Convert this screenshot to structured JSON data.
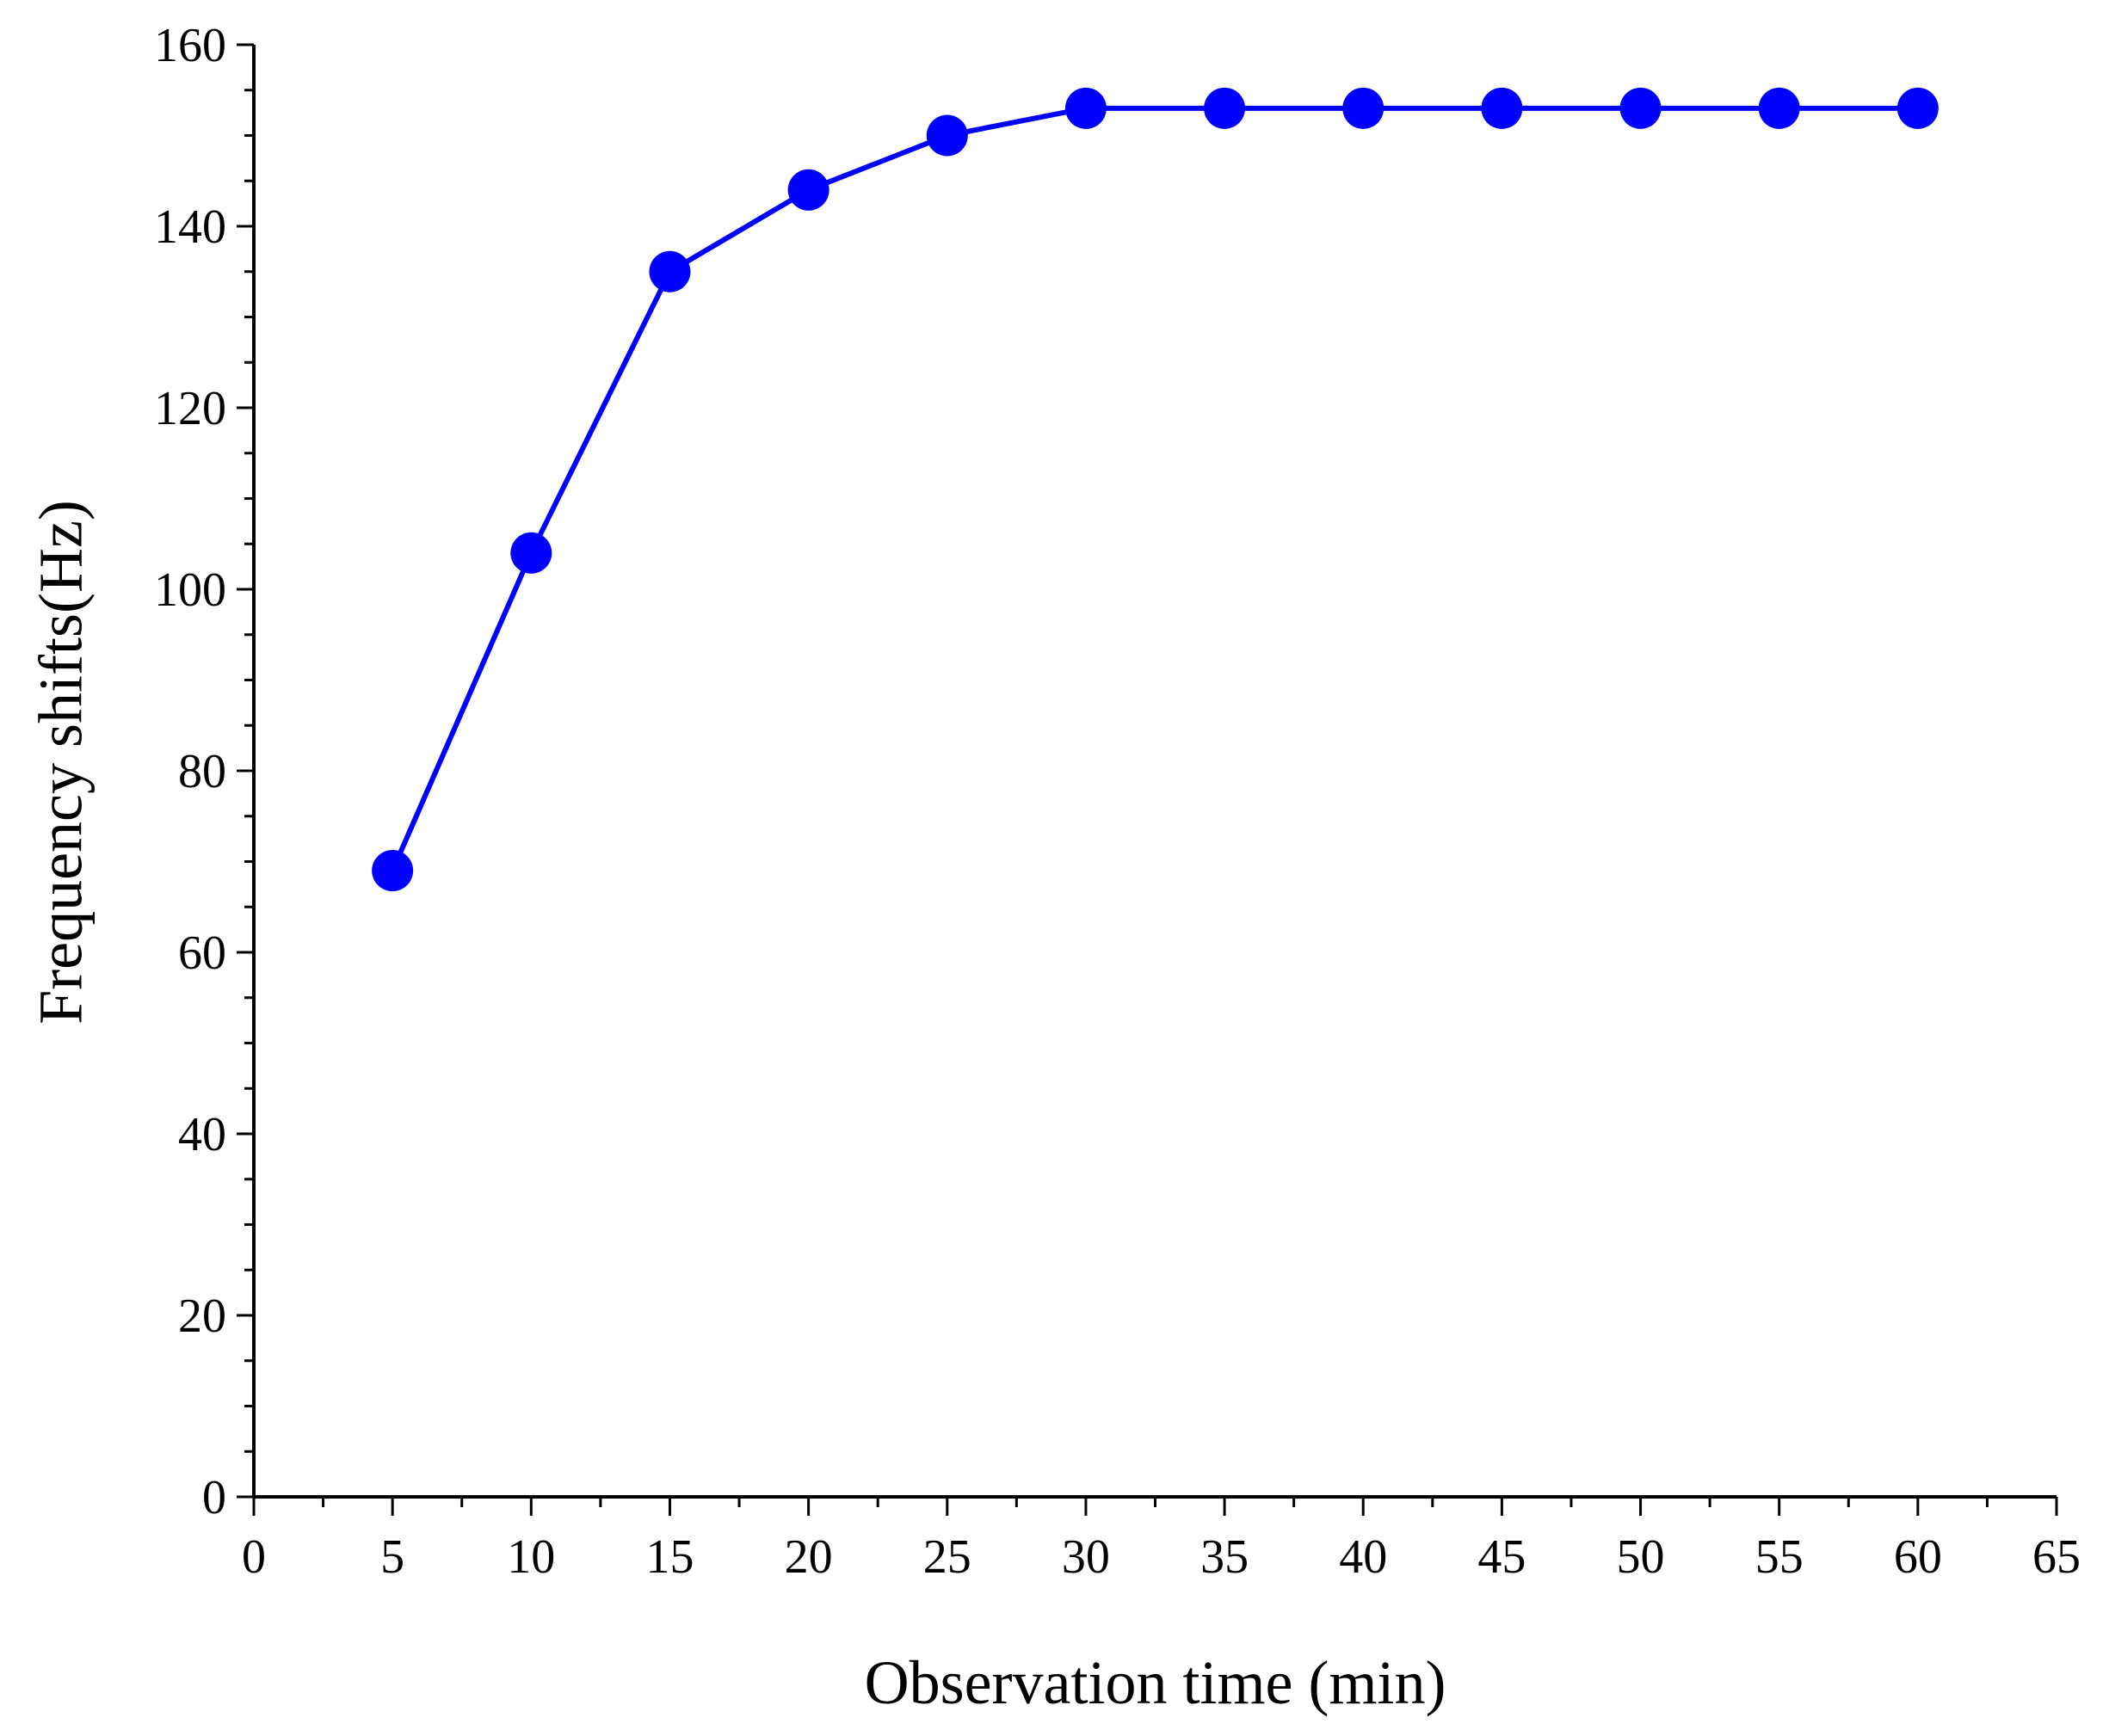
{
  "chart_data": {
    "type": "line",
    "title": "",
    "xlabel": "Observation time (min)",
    "ylabel": "Frequency shifts(Hz)",
    "xlim": [
      0,
      65
    ],
    "ylim": [
      0,
      160
    ],
    "x_ticks": [
      0,
      5,
      10,
      15,
      20,
      25,
      30,
      35,
      40,
      45,
      50,
      55,
      60,
      65
    ],
    "y_ticks": [
      0,
      20,
      40,
      60,
      80,
      100,
      120,
      140,
      160
    ],
    "x_minor_step": 2.5,
    "y_minor_step": 5,
    "grid": false,
    "legend": "none",
    "series": [
      {
        "name": "Frequency shifts",
        "color": "#0000ff",
        "marker": "circle",
        "x": [
          5,
          10,
          15,
          20,
          25,
          30,
          35,
          40,
          45,
          50,
          55,
          60
        ],
        "y": [
          69,
          104,
          135,
          144,
          150,
          153,
          153,
          153,
          153,
          153,
          153,
          153
        ]
      }
    ]
  }
}
